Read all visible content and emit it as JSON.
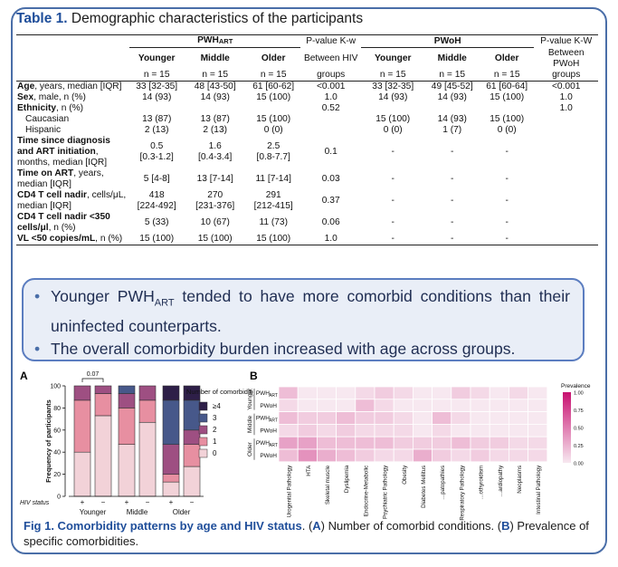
{
  "table": {
    "number": "Table 1.",
    "title": "Demographic characteristics of the participants",
    "group_hiv": "PWH",
    "group_hiv_sub": "ART",
    "group_neg": "PWoH",
    "pval_hiv_l1": "P-value K-w",
    "pval_hiv_l2": "Between HIV",
    "pval_hiv_l3": "groups",
    "pval_neg_l1": "P-value K-W",
    "pval_neg_l2": "Between PWoH",
    "pval_neg_l3": "groups",
    "age_groups": [
      "Younger",
      "Middle",
      "Older"
    ],
    "n_hiv": [
      "n = 15",
      "n = 15",
      "n = 15"
    ],
    "n_neg": [
      "n = 15",
      "n = 15",
      "n = 15"
    ],
    "rows": [
      {
        "label_bold": "Age",
        "label": ", years, median [IQR]",
        "hiv": [
          "33 [32-35]",
          "48 [43-50]",
          "61 [60-62]"
        ],
        "p_hiv": "<0.001",
        "neg": [
          "33 [32-35]",
          "49 [45-52]",
          "61 [60-64]"
        ],
        "p_neg": "<0.001"
      },
      {
        "label_bold": "Sex",
        "label": ", male, n (%)",
        "hiv": [
          "14 (93)",
          "14 (93)",
          "15 (100)"
        ],
        "p_hiv": "1.0",
        "neg": [
          "14 (93)",
          "14 (93)",
          "15 (100)"
        ],
        "p_neg": "1.0"
      },
      {
        "label_bold": "Ethnicity",
        "label": ", n (%)",
        "hiv": [
          "",
          "",
          ""
        ],
        "p_hiv": "0.52",
        "neg": [
          "",
          "",
          ""
        ],
        "p_neg": "1.0"
      },
      {
        "label_bold": "",
        "label": "Caucasian",
        "indent": true,
        "hiv": [
          "13 (87)",
          "13 (87)",
          "15 (100)"
        ],
        "p_hiv": "",
        "neg": [
          "15 (100)",
          "14 (93)",
          "15 (100)"
        ],
        "p_neg": ""
      },
      {
        "label_bold": "",
        "label": "Hispanic",
        "indent": true,
        "hiv": [
          "2 (13)",
          "2 (13)",
          "0 (0)"
        ],
        "p_hiv": "",
        "neg": [
          "0 (0)",
          "1 (7)",
          "0 (0)"
        ],
        "p_neg": ""
      },
      {
        "label_bold": "Time since diagnosis and ART initiation",
        "label": ", months, median [IQR]",
        "hiv": [
          "0.5\n[0.3-1.2]",
          "1.6\n[0.4-3.4]",
          "2.5\n[0.8-7.7]"
        ],
        "p_hiv": "0.1",
        "neg": [
          "-",
          "-",
          "-"
        ],
        "p_neg": ""
      },
      {
        "label_bold": "Time on ART",
        "label": ", years, median [IQR]",
        "hiv": [
          "5 [4-8]",
          "13 [7-14]",
          "11 [7-14]"
        ],
        "p_hiv": "0.03",
        "neg": [
          "-",
          "-",
          "-"
        ],
        "p_neg": ""
      },
      {
        "label_bold": "CD4 T cell nadir",
        "label": ", cells/μL, median [IQR]",
        "hiv": [
          "418\n[224-492]",
          "270\n[231-376]",
          "291\n[212-415]"
        ],
        "p_hiv": "0.37",
        "neg": [
          "-",
          "-",
          "-"
        ],
        "p_neg": ""
      },
      {
        "label_bold": "CD4 T cell nadir <350 cells/μl",
        "label": ", n (%)",
        "hiv": [
          "5 (33)",
          "10 (67)",
          "11 (73)"
        ],
        "p_hiv": "0.06",
        "neg": [
          "-",
          "-",
          "-"
        ],
        "p_neg": ""
      },
      {
        "label_bold": "VL <50 copies/mL",
        "label": ", n (%)",
        "hiv": [
          "15 (100)",
          "15 (100)",
          "15 (100)"
        ],
        "p_hiv": "1.0",
        "neg": [
          "-",
          "-",
          "-"
        ],
        "p_neg": ""
      }
    ]
  },
  "bullets": [
    {
      "pre": "Younger PWH",
      "sub": "ART",
      "post": " tended to have more comorbid conditions than their uninfected counterparts."
    },
    {
      "pre": "The overall comorbidity burden increased with age across groups.",
      "sub": "",
      "post": ""
    }
  ],
  "caption": {
    "bold": "Fig 1. Comorbidity patterns by age and HIV status",
    "text_a": ". (",
    "a": "A",
    "text_b": ") Number of comorbid conditions. (",
    "b": "B",
    "text_c": ") Prevalence of specific comorbidities."
  },
  "chart_data": [
    {
      "panel": "A",
      "type": "bar",
      "stacked": true,
      "ylabel": "Frequency of participants",
      "ylim": [
        0,
        100
      ],
      "yticks": [
        0,
        20,
        40,
        60,
        80,
        100
      ],
      "xlabel": "HIV status",
      "categories": [
        "+",
        "−",
        "+",
        "−",
        "+",
        "−"
      ],
      "group_labels": [
        "Younger",
        "Middle",
        "Older"
      ],
      "annotation": "0.07",
      "legend_title": "Number of comorbidities:",
      "series": [
        {
          "name": "0",
          "color": "#f2d2d8",
          "values": [
            40,
            73,
            47,
            67,
            13,
            27
          ]
        },
        {
          "name": "1",
          "color": "#e78fa1",
          "values": [
            47,
            20,
            33,
            20,
            7,
            20
          ]
        },
        {
          "name": "2",
          "color": "#9e4f82",
          "values": [
            13,
            7,
            13,
            13,
            27,
            13
          ]
        },
        {
          "name": "3",
          "color": "#47588a",
          "values": [
            0,
            0,
            7,
            0,
            40,
            27
          ]
        },
        {
          "name": "≥4",
          "color": "#2e1f48",
          "values": [
            0,
            0,
            0,
            0,
            13,
            13
          ]
        }
      ]
    },
    {
      "panel": "B",
      "type": "heatmap",
      "legend_title": "Prevalence",
      "scale_ticks": [
        "1.00",
        "0.75",
        "0.50",
        "0.25",
        "0.00"
      ],
      "age_labels": [
        "Younger",
        "Middle",
        "Older"
      ],
      "row_labels": [
        "PWH",
        "PWoH",
        "PWH",
        "PWoH",
        "PWH",
        "PWoH"
      ],
      "row_sub": [
        "ART",
        "",
        "ART",
        "",
        "ART",
        ""
      ],
      "columns": [
        "Urogenital Pathology",
        "HTA",
        "Skeletal muscle",
        "Dyslipemia",
        "Endocrine-Metabolic",
        "Psychiatric Pathology",
        "Obesity",
        "Diabetes Mellitus",
        "…patopathies",
        "Respiratory Pathology",
        "…othyroidism",
        "…ardiopathy",
        "Neoplasms",
        "Intestinal Pathology"
      ],
      "values": [
        [
          0.2,
          0.0,
          0.0,
          0.0,
          0.07,
          0.13,
          0.07,
          0.0,
          0.0,
          0.13,
          0.07,
          0.0,
          0.07,
          0.0
        ],
        [
          0.07,
          0.0,
          0.0,
          0.0,
          0.2,
          0.07,
          0.0,
          0.0,
          0.0,
          0.0,
          0.0,
          0.0,
          0.0,
          0.0
        ],
        [
          0.2,
          0.13,
          0.13,
          0.2,
          0.13,
          0.13,
          0.07,
          0.0,
          0.2,
          0.07,
          0.0,
          0.0,
          0.0,
          0.0
        ],
        [
          0.07,
          0.13,
          0.07,
          0.13,
          0.07,
          0.07,
          0.07,
          0.0,
          0.07,
          0.0,
          0.0,
          0.0,
          0.0,
          0.0
        ],
        [
          0.33,
          0.33,
          0.2,
          0.2,
          0.2,
          0.2,
          0.13,
          0.13,
          0.13,
          0.2,
          0.13,
          0.13,
          0.07,
          0.07
        ],
        [
          0.2,
          0.4,
          0.27,
          0.2,
          0.13,
          0.07,
          0.07,
          0.27,
          0.13,
          0.07,
          0.13,
          0.07,
          0.07,
          0.07
        ]
      ]
    }
  ]
}
